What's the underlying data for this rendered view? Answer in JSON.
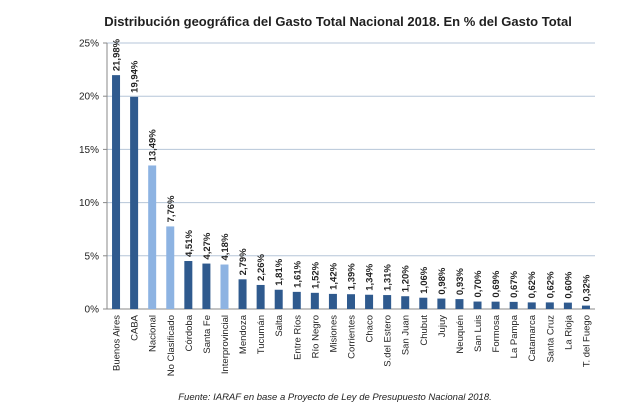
{
  "chart_data": {
    "type": "bar",
    "title": "Distribución geográfica del Gasto Total Nacional 2018. En % del Gasto Total",
    "xlabel": "",
    "ylabel": "",
    "ylim": [
      0,
      25
    ],
    "yticks": [
      0,
      5,
      10,
      15,
      20,
      25
    ],
    "ytick_labels": [
      "0%",
      "5%",
      "10%",
      "15%",
      "20%",
      "25%"
    ],
    "grid": true,
    "categories": [
      "Buenos Aires",
      "CABA",
      "Nacional",
      "No Clasificado",
      "Córdoba",
      "Santa Fe",
      "Interprovincial",
      "Mendoza",
      "Tucumán",
      "Salta",
      "Entre Ríos",
      "Río Negro",
      "Misiones",
      "Corrientes",
      "Chaco",
      "S.del Estero",
      "San Juan",
      "Chubut",
      "Jujuy",
      "Neuquén",
      "San Luis",
      "Formosa",
      "La Pampa",
      "Catamarca",
      "Santa Cruz",
      "La Rioja",
      "T. del Fuego"
    ],
    "values": [
      21.98,
      19.94,
      13.49,
      7.76,
      4.51,
      4.27,
      4.18,
      2.79,
      2.26,
      1.81,
      1.61,
      1.52,
      1.42,
      1.39,
      1.34,
      1.31,
      1.2,
      1.06,
      0.98,
      0.93,
      0.7,
      0.69,
      0.67,
      0.62,
      0.62,
      0.6,
      0.32
    ],
    "data_labels": [
      "21,98%",
      "19,94%",
      "13,49%",
      "7,76%",
      "4,51%",
      "4,27%",
      "4,18%",
      "2,79%",
      "2,26%",
      "1,81%",
      "1,61%",
      "1,52%",
      "1,42%",
      "1,39%",
      "1,34%",
      "1,31%",
      "1,20%",
      "1,06%",
      "0,98%",
      "0,93%",
      "0,70%",
      "0,69%",
      "0,67%",
      "0,62%",
      "0,62%",
      "0,60%",
      "0,32%"
    ],
    "highlighted": [
      "Nacional",
      "No Clasificado",
      "Interprovincial"
    ],
    "colors": {
      "default": "#2f5a8e",
      "highlight": "#8db3e2",
      "grid": "#b6c6d8",
      "axis": "#888888"
    },
    "source": "Fuente: IARAF en base a Proyecto de Ley de Presupuesto Nacional 2018."
  }
}
